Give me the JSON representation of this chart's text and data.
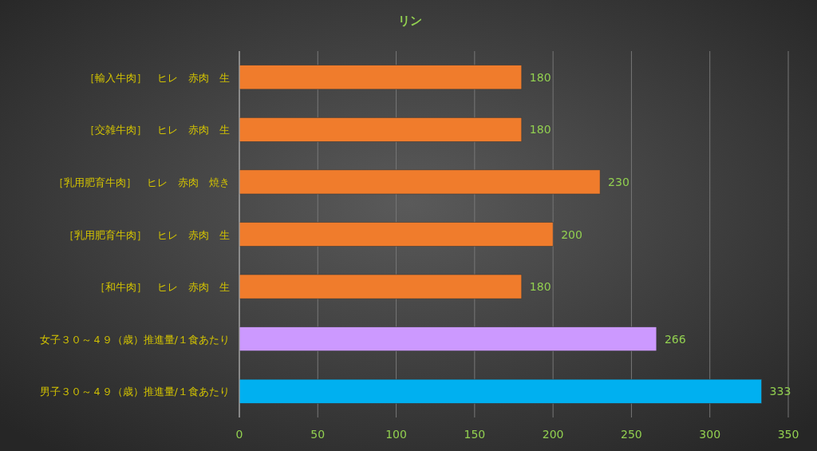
{
  "chart_data": {
    "type": "bar",
    "orientation": "horizontal",
    "title": "リン",
    "categories": [
      "［輸入牛肉］　ヒレ　赤肉　生",
      "［交雑牛肉］　ヒレ　赤肉　生",
      "［乳用肥育牛肉］　ヒレ　赤肉　焼き",
      "［乳用肥育牛肉］　ヒレ　赤肉　生",
      "［和牛肉］　ヒレ　赤肉　生",
      "女子３０～４９（歳）推進量/１食あたり",
      "男子３０～４９（歳）推進量/１食あたり"
    ],
    "values": [
      180,
      180,
      230,
      200,
      180,
      266,
      333
    ],
    "colors": [
      "#f07c2c",
      "#f07c2c",
      "#f07c2c",
      "#f07c2c",
      "#f07c2c",
      "#cc99ff",
      "#00b0f0"
    ],
    "xlim": [
      0,
      350
    ],
    "xticks": [
      0,
      50,
      100,
      150,
      200,
      250,
      300,
      350
    ],
    "grid": "x",
    "data_labels": true
  }
}
